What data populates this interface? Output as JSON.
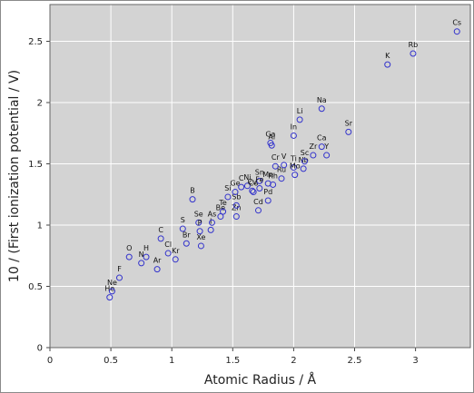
{
  "chart_data": {
    "type": "scatter",
    "title": "",
    "xlabel": "Atomic Radius / Å",
    "ylabel": "10 / (First ionization potential / V)",
    "xlim": [
      0,
      3.45
    ],
    "ylim": [
      0,
      2.8
    ],
    "xticks": [
      {
        "value": 0,
        "label": "0"
      },
      {
        "value": 0.5,
        "label": "0.5"
      },
      {
        "value": 1,
        "label": "1"
      },
      {
        "value": 1.5,
        "label": "1.5"
      },
      {
        "value": 2,
        "label": "2"
      },
      {
        "value": 2.5,
        "label": "2.5"
      },
      {
        "value": 3,
        "label": "3"
      }
    ],
    "yticks": [
      {
        "value": 0,
        "label": "0"
      },
      {
        "value": 0.5,
        "label": "0.5"
      },
      {
        "value": 1,
        "label": "1"
      },
      {
        "value": 1.5,
        "label": "1.5"
      },
      {
        "value": 2,
        "label": "2"
      },
      {
        "value": 2.5,
        "label": "2.5"
      }
    ],
    "grid": true,
    "background": "#d3d3d3",
    "grid_color": "#ffffff",
    "marker_color": "#3333cc",
    "points": [
      {
        "label": "He",
        "x": 0.49,
        "y": 0.41
      },
      {
        "label": "Ne",
        "x": 0.51,
        "y": 0.46
      },
      {
        "label": "F",
        "x": 0.57,
        "y": 0.57
      },
      {
        "label": "O",
        "x": 0.65,
        "y": 0.74
      },
      {
        "label": "N",
        "x": 0.75,
        "y": 0.69
      },
      {
        "label": "H",
        "x": 0.79,
        "y": 0.74
      },
      {
        "label": "C",
        "x": 0.91,
        "y": 0.89
      },
      {
        "label": "Ar",
        "x": 0.88,
        "y": 0.64
      },
      {
        "label": "Cl",
        "x": 0.97,
        "y": 0.77
      },
      {
        "label": "Kr",
        "x": 1.03,
        "y": 0.72
      },
      {
        "label": "S",
        "x": 1.09,
        "y": 0.97
      },
      {
        "label": "Br",
        "x": 1.12,
        "y": 0.85
      },
      {
        "label": "B",
        "x": 1.17,
        "y": 1.21
      },
      {
        "label": "Se",
        "x": 1.22,
        "y": 1.02
      },
      {
        "label": "P",
        "x": 1.23,
        "y": 0.95
      },
      {
        "label": "Xe",
        "x": 1.24,
        "y": 0.83
      },
      {
        "label": "I",
        "x": 1.32,
        "y": 0.96
      },
      {
        "label": "As",
        "x": 1.33,
        "y": 1.02
      },
      {
        "label": "Be",
        "x": 1.4,
        "y": 1.07
      },
      {
        "label": "Te",
        "x": 1.42,
        "y": 1.11
      },
      {
        "label": "Si",
        "x": 1.46,
        "y": 1.23
      },
      {
        "label": "Zn",
        "x": 1.53,
        "y": 1.07
      },
      {
        "label": "Sb",
        "x": 1.53,
        "y": 1.16
      },
      {
        "label": "Ge",
        "x": 1.52,
        "y": 1.27
      },
      {
        "label": "C",
        "x": 1.57,
        "y": 1.31
      },
      {
        "label": "Ni",
        "x": 1.62,
        "y": 1.32
      },
      {
        "label": "Cu",
        "x": 1.66,
        "y": 1.28
      },
      {
        "label": "Co",
        "x": 1.67,
        "y": 1.27
      },
      {
        "label": "Sn",
        "x": 1.72,
        "y": 1.36
      },
      {
        "label": "Fe",
        "x": 1.72,
        "y": 1.3
      },
      {
        "label": "Cd",
        "x": 1.71,
        "y": 1.12
      },
      {
        "label": "Pd",
        "x": 1.79,
        "y": 1.2
      },
      {
        "label": "Mn",
        "x": 1.79,
        "y": 1.34
      },
      {
        "label": "Rh",
        "x": 1.83,
        "y": 1.33
      },
      {
        "label": "Ru",
        "x": 1.9,
        "y": 1.38
      },
      {
        "label": "Cr",
        "x": 1.85,
        "y": 1.48
      },
      {
        "label": "V",
        "x": 1.92,
        "y": 1.49
      },
      {
        "label": "Ga",
        "x": 1.81,
        "y": 1.67
      },
      {
        "label": "Al",
        "x": 1.82,
        "y": 1.65
      },
      {
        "label": "Ti",
        "x": 2.0,
        "y": 1.47
      },
      {
        "label": "Mo",
        "x": 2.01,
        "y": 1.41
      },
      {
        "label": "Nb",
        "x": 2.08,
        "y": 1.46
      },
      {
        "label": "In",
        "x": 2.0,
        "y": 1.73
      },
      {
        "label": "Sc",
        "x": 2.09,
        "y": 1.52
      },
      {
        "label": "Zr",
        "x": 2.16,
        "y": 1.57
      },
      {
        "label": "Y",
        "x": 2.27,
        "y": 1.57
      },
      {
        "label": "Ca",
        "x": 2.23,
        "y": 1.64
      },
      {
        "label": "Li",
        "x": 2.05,
        "y": 1.86
      },
      {
        "label": "Na",
        "x": 2.23,
        "y": 1.95
      },
      {
        "label": "Sr",
        "x": 2.45,
        "y": 1.76
      },
      {
        "label": "K",
        "x": 2.77,
        "y": 2.31
      },
      {
        "label": "Rb",
        "x": 2.98,
        "y": 2.4
      },
      {
        "label": "Cs",
        "x": 3.34,
        "y": 2.58
      }
    ]
  }
}
